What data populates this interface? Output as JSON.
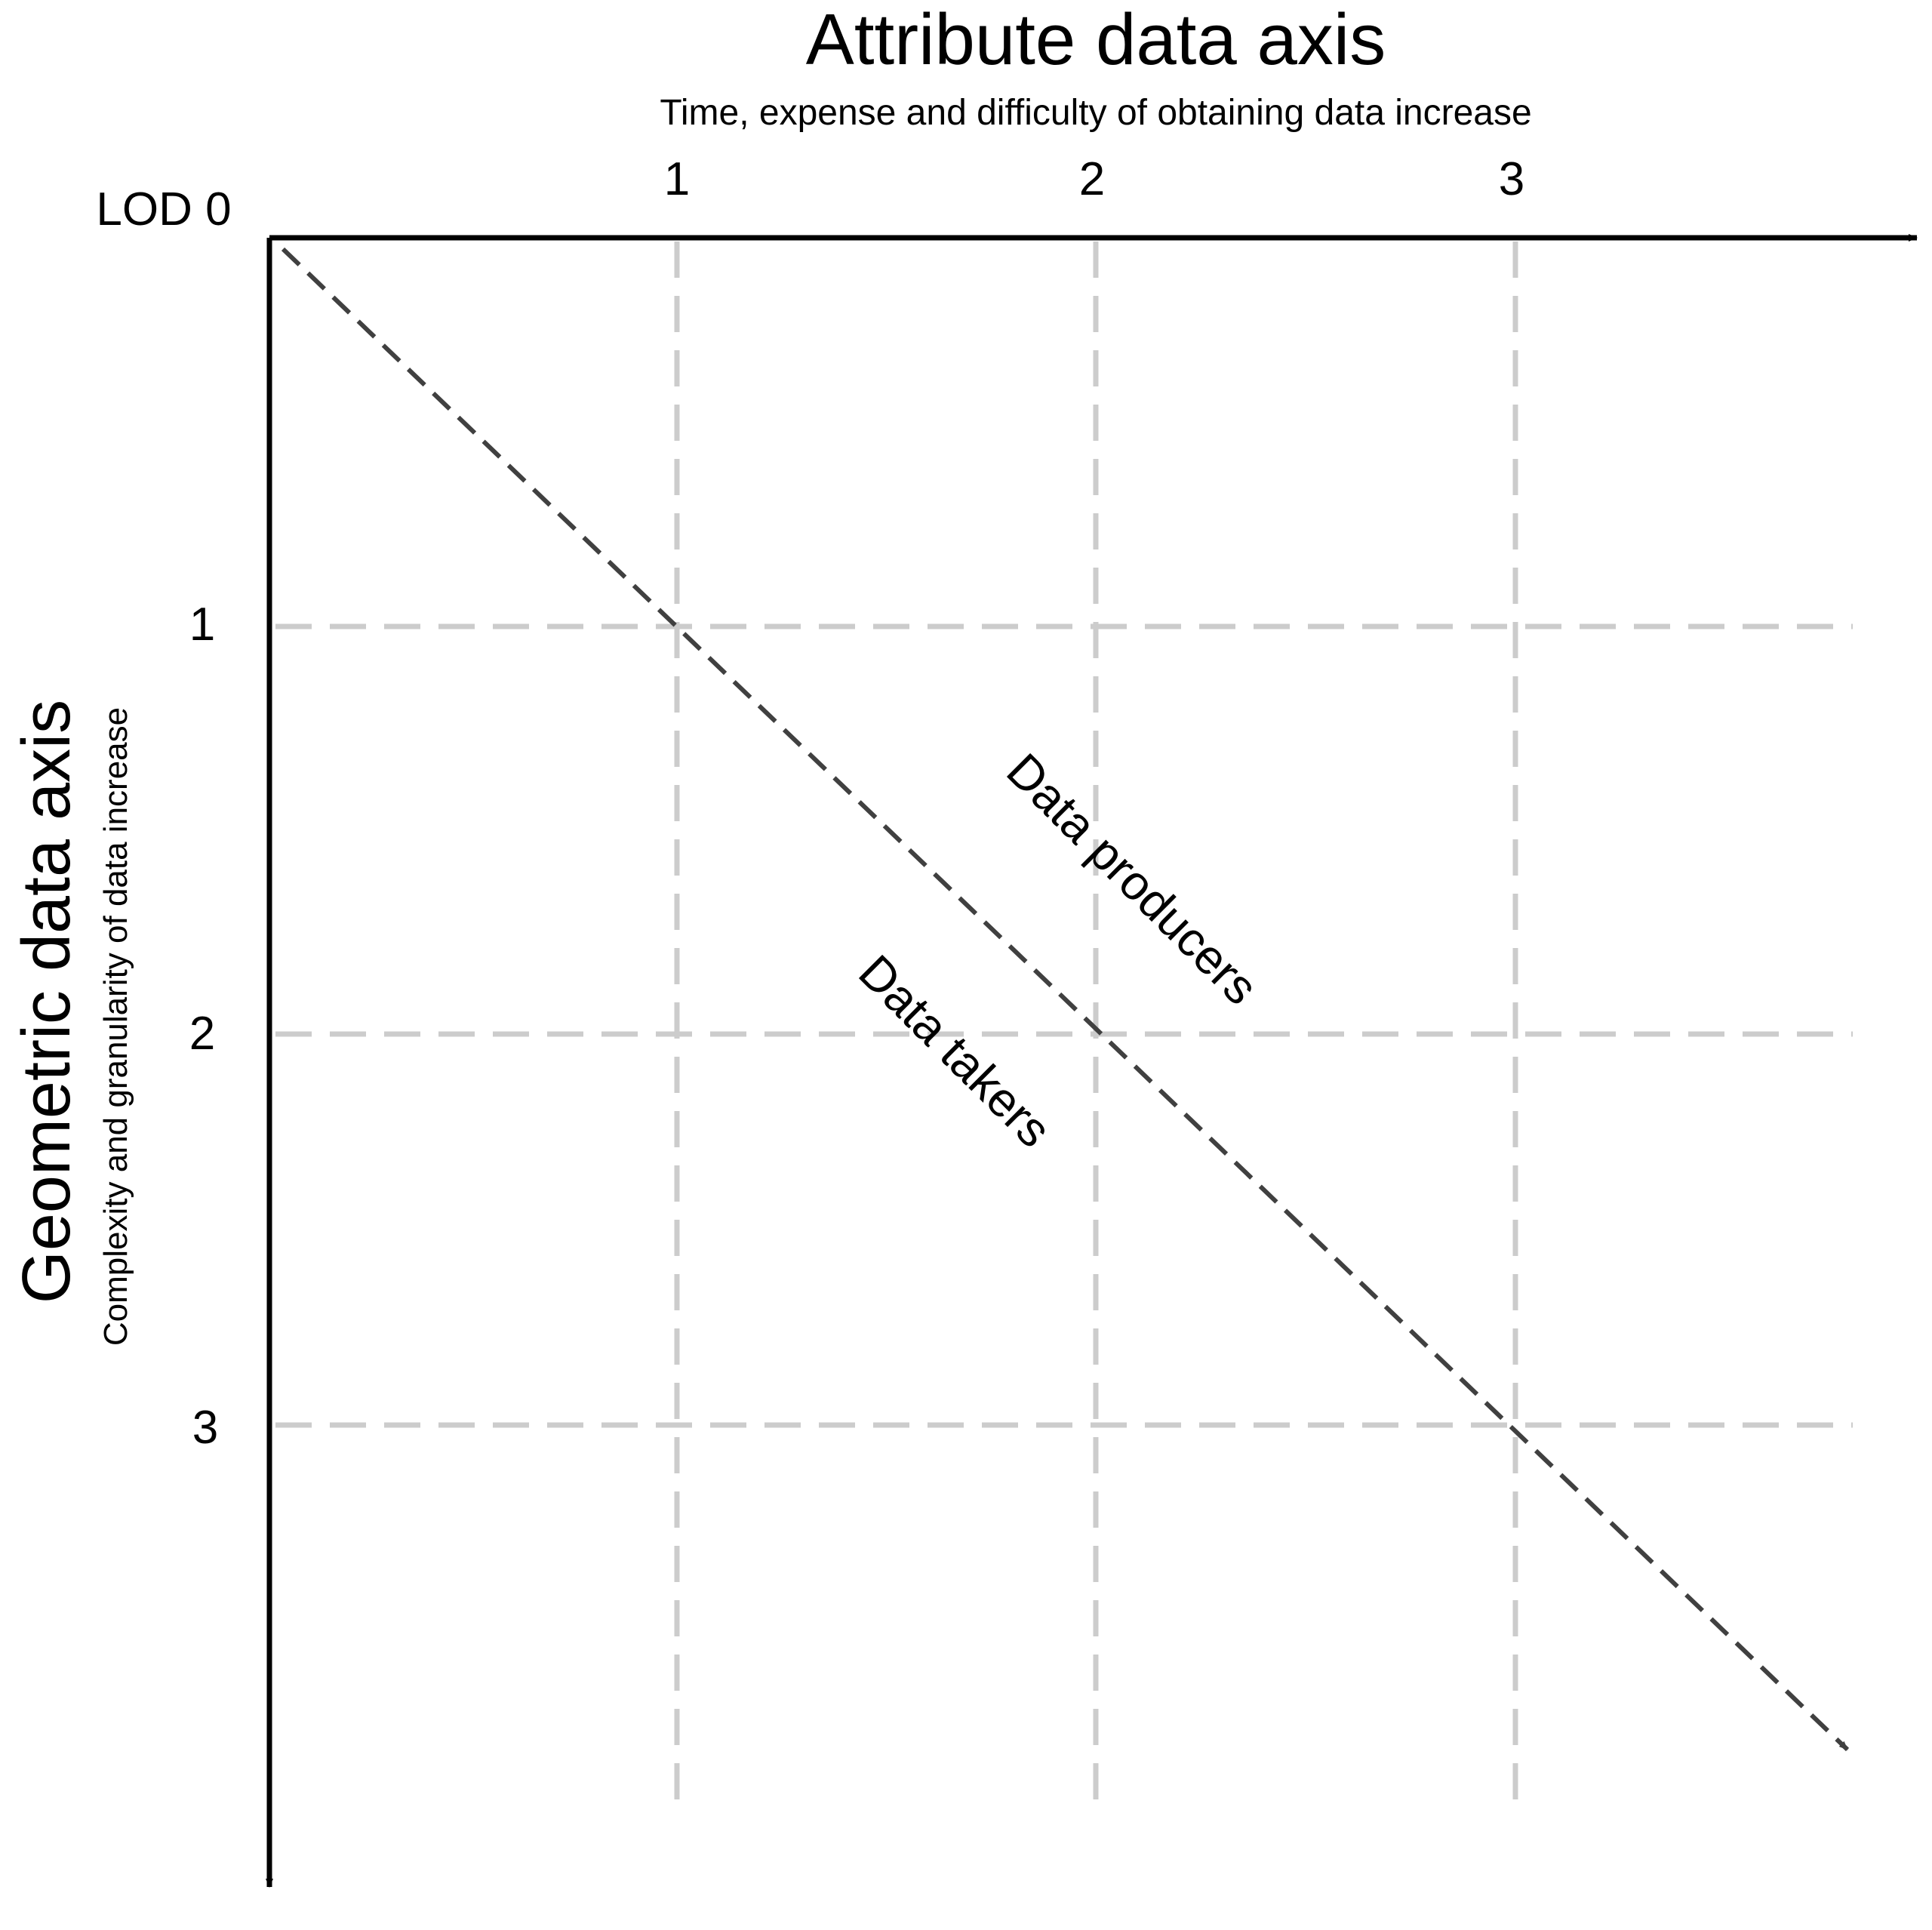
{
  "attribute_axis": {
    "title": "Attribute data axis",
    "subtitle": "Time, expense and difficulty of obtaining data increase",
    "ticks": [
      "1",
      "2",
      "3"
    ]
  },
  "geometric_axis": {
    "title": "Geometric data axis",
    "subtitle": "Complexity and granularity of data increase",
    "ticks": [
      "1",
      "2",
      "3"
    ]
  },
  "origin_label": "LOD 0",
  "regions": {
    "upper": "Data producers",
    "lower": "Data takers"
  },
  "colors": {
    "axis": "#000000",
    "grid": "#cccccc",
    "diagonal": "#404040",
    "text": "#000000"
  }
}
